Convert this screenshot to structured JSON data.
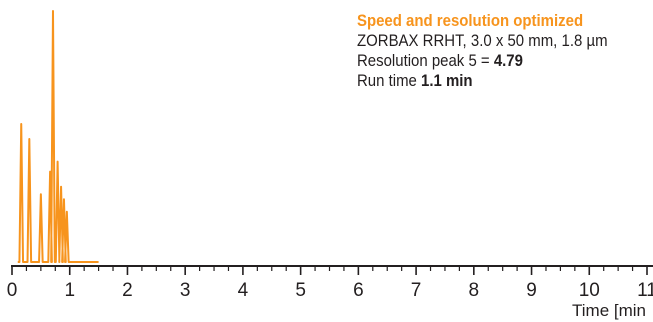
{
  "chart_data": {
    "type": "line",
    "title": "",
    "xlabel": "Time [min",
    "ylabel": "",
    "xlim": [
      0,
      11
    ],
    "x_ticks": [
      0,
      1,
      2,
      3,
      4,
      5,
      6,
      7,
      8,
      9,
      10,
      11
    ],
    "x_tick_labels": [
      "0",
      "1",
      "2",
      "3",
      "4",
      "5",
      "6",
      "7",
      "8",
      "9",
      "10",
      "11"
    ],
    "y_axis_visible": false,
    "grid": false,
    "series": [
      {
        "color": "#f7941d",
        "run_end": 1.5,
        "peaks": [
          {
            "time": 0.16,
            "height": 0.55
          },
          {
            "time": 0.3,
            "height": 0.49
          },
          {
            "time": 0.5,
            "height": 0.27
          },
          {
            "time": 0.66,
            "height": 0.36
          },
          {
            "time": 0.71,
            "height": 1.0
          },
          {
            "time": 0.79,
            "height": 0.4
          },
          {
            "time": 0.85,
            "height": 0.3
          },
          {
            "time": 0.9,
            "height": 0.25
          },
          {
            "time": 0.95,
            "height": 0.2
          }
        ]
      }
    ],
    "annotations": {
      "headline": "Speed and resolution optimized",
      "column": "ZORBAX RRHT, 3.0 x 50 mm, 1.8 µm",
      "resolution_label": "Resolution peak 5 = ",
      "resolution_value": "4.79",
      "run_time_label": "Run time ",
      "run_time_value": "1.1 min"
    }
  },
  "colors": {
    "trace": "#f7941d",
    "axis": "#231f20",
    "headline": "#f7941d"
  }
}
